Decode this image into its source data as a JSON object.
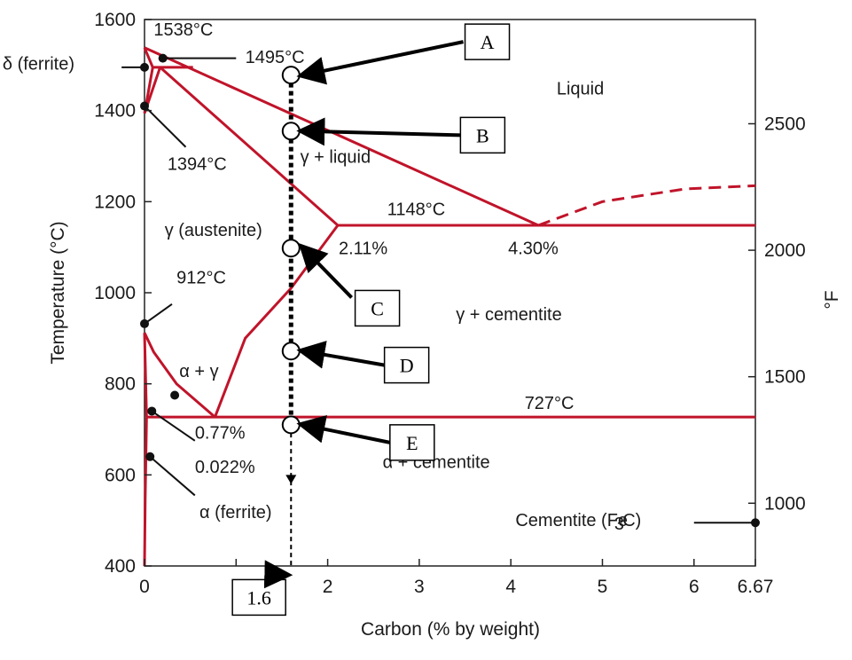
{
  "chart_data": {
    "type": "line",
    "xlabel": "Carbon (% by weight)",
    "ylabel": "Temperature (°C)",
    "y2label": "°F",
    "xlim": [
      0,
      6.67
    ],
    "ylim": [
      400,
      1600
    ],
    "x_ticks": [
      "0",
      "1",
      "2",
      "3",
      "4",
      "5",
      "6",
      "6.67"
    ],
    "y_ticks": [
      "400",
      "600",
      "800",
      "1000",
      "1200",
      "1400",
      "1600"
    ],
    "y2_ticks": [
      {
        "label": "1000",
        "f": 1000
      },
      {
        "label": "1500",
        "f": 1500
      },
      {
        "label": "2000",
        "f": 2000
      },
      {
        "label": "2500",
        "f": 2500
      }
    ],
    "line_color": "#c0142a",
    "phase_boundaries": [
      {
        "name": "liquidus-left",
        "points": [
          [
            0,
            1538
          ],
          [
            4.3,
            1148
          ]
        ]
      },
      {
        "name": "liquidus-right",
        "style": "dashed",
        "points": [
          [
            4.3,
            1148
          ],
          [
            5.0,
            1200
          ],
          [
            5.9,
            1228
          ],
          [
            6.67,
            1235
          ]
        ]
      },
      {
        "name": "eutectic-line",
        "points": [
          [
            2.11,
            1148
          ],
          [
            6.67,
            1148
          ]
        ]
      },
      {
        "name": "solidus",
        "points": [
          [
            0.17,
            1495
          ],
          [
            2.11,
            1148
          ]
        ]
      },
      {
        "name": "acm",
        "points": [
          [
            2.11,
            1148
          ],
          [
            1.6,
            1010
          ],
          [
            1.1,
            900
          ],
          [
            0.77,
            727
          ]
        ]
      },
      {
        "name": "eutectoid-line",
        "points": [
          [
            0.022,
            727
          ],
          [
            6.67,
            727
          ]
        ]
      },
      {
        "name": "a3",
        "points": [
          [
            0,
            912
          ],
          [
            0.1,
            870
          ],
          [
            0.35,
            800
          ],
          [
            0.77,
            727
          ]
        ]
      },
      {
        "name": "a1-solvus",
        "points": [
          [
            0,
            912
          ],
          [
            0.022,
            727
          ]
        ]
      },
      {
        "name": "alpha-solvus",
        "points": [
          [
            0.022,
            727
          ],
          [
            0.008,
            550
          ],
          [
            0,
            400
          ]
        ]
      },
      {
        "name": "delta-1",
        "points": [
          [
            0,
            1538
          ],
          [
            0.09,
            1495
          ]
        ]
      },
      {
        "name": "delta-2",
        "points": [
          [
            0,
            1394
          ],
          [
            0.09,
            1495
          ]
        ]
      },
      {
        "name": "delta-3",
        "points": [
          [
            0,
            1394
          ],
          [
            0.17,
            1495
          ]
        ]
      },
      {
        "name": "peritectic-line",
        "points": [
          [
            0.09,
            1495
          ],
          [
            0.53,
            1495
          ]
        ]
      }
    ],
    "annotations": [
      {
        "text": "1538°C",
        "x": 0.1,
        "y": 1565
      },
      {
        "text": "1495°C",
        "x": 1.1,
        "y": 1505
      },
      {
        "text": "1394°C",
        "x": 0.25,
        "y": 1270
      },
      {
        "text": "Liquid",
        "x": 4.5,
        "y": 1435
      },
      {
        "text": "γ + liquid",
        "x": 1.7,
        "y": 1285
      },
      {
        "text": "1148°C",
        "x": 2.65,
        "y": 1170
      },
      {
        "text": "γ (austenite)",
        "x": 0.22,
        "y": 1125
      },
      {
        "text": "2.11%",
        "x": 2.12,
        "y": 1085
      },
      {
        "text": "4.30%",
        "x": 3.97,
        "y": 1085
      },
      {
        "text": "912°C",
        "x": 0.35,
        "y": 1020
      },
      {
        "text": "γ + cementite",
        "x": 3.4,
        "y": 940
      },
      {
        "text": "α + γ",
        "x": 0.38,
        "y": 815
      },
      {
        "text": "727°C",
        "x": 4.15,
        "y": 745
      },
      {
        "text": "0.77%",
        "x": 0.55,
        "y": 680
      },
      {
        "text": "0.022%",
        "x": 0.55,
        "y": 605
      },
      {
        "text": "α + cementite",
        "x": 2.6,
        "y": 615
      },
      {
        "text": "α (ferrite)",
        "x": 0.6,
        "y": 505
      },
      {
        "text": "Cementite (Fe",
        "x": 4.05,
        "y": 488
      },
      {
        "text": "3",
        "x": 5.13,
        "y": 480
      },
      {
        "text": "C)",
        "x": 5.22,
        "y": 488
      },
      {
        "text": "δ (ferrite)",
        "x": -1.55,
        "y": 1490
      }
    ],
    "dots": [
      {
        "x": 0,
        "y": 1495
      },
      {
        "x": 0.2,
        "y": 1515
      },
      {
        "x": 0,
        "y": 1410
      },
      {
        "x": 0,
        "y": 932
      },
      {
        "x": 0.33,
        "y": 775
      },
      {
        "x": 0.08,
        "y": 740
      },
      {
        "x": 0.06,
        "y": 640
      },
      {
        "x": 6.67,
        "y": 495
      }
    ],
    "pointer_lines": [
      {
        "from": [
          -0.25,
          1495
        ],
        "to": [
          0,
          1495
        ]
      },
      {
        "from": [
          0.2,
          1515
        ],
        "to": [
          1.0,
          1515
        ]
      },
      {
        "from": [
          0,
          1410
        ],
        "to": [
          0.45,
          1320
        ]
      },
      {
        "from": [
          0,
          932
        ],
        "to": [
          0.3,
          975
        ]
      },
      {
        "from": [
          0.08,
          740
        ],
        "to": [
          0.55,
          675
        ]
      },
      {
        "from": [
          0.06,
          640
        ],
        "to": [
          0.55,
          555
        ]
      },
      {
        "from": [
          6.0,
          495
        ],
        "to": [
          6.67,
          495
        ]
      }
    ],
    "composition_line": {
      "x": 1.6,
      "y_from": 400,
      "y_to": 1478
    },
    "points": [
      {
        "label": "A",
        "y": 1478
      },
      {
        "label": "B",
        "y": 1355
      },
      {
        "label": "C",
        "y": 1098
      },
      {
        "label": "D",
        "y": 872
      },
      {
        "label": "E",
        "y": 710
      }
    ],
    "callouts": [
      {
        "label": "A",
        "box": [
          3.5,
          1590
        ]
      },
      {
        "label": "B",
        "box": [
          3.45,
          1385
        ]
      },
      {
        "label": "C",
        "box": [
          2.3,
          1005
        ]
      },
      {
        "label": "D",
        "box": [
          2.62,
          880
        ]
      },
      {
        "label": "E",
        "box": [
          2.68,
          710
        ]
      },
      {
        "label": "1.6",
        "box": [
          0.96,
          370
        ]
      }
    ]
  }
}
